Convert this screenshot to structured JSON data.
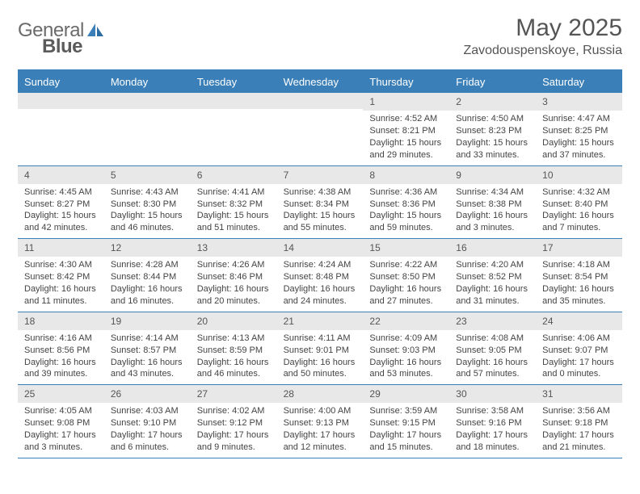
{
  "logo": {
    "text1": "General",
    "text2": "Blue"
  },
  "title": "May 2025",
  "location": "Zavodouspenskoye, Russia",
  "colors": {
    "header_bg": "#3a7fb8",
    "header_text": "#ffffff",
    "daynum_bg": "#e8e8e8",
    "text": "#444444",
    "border": "#3a7fb8"
  },
  "day_names": [
    "Sunday",
    "Monday",
    "Tuesday",
    "Wednesday",
    "Thursday",
    "Friday",
    "Saturday"
  ],
  "weeks": [
    [
      {
        "n": "",
        "sr": "",
        "ss": "",
        "dl": ""
      },
      {
        "n": "",
        "sr": "",
        "ss": "",
        "dl": ""
      },
      {
        "n": "",
        "sr": "",
        "ss": "",
        "dl": ""
      },
      {
        "n": "",
        "sr": "",
        "ss": "",
        "dl": ""
      },
      {
        "n": "1",
        "sr": "Sunrise: 4:52 AM",
        "ss": "Sunset: 8:21 PM",
        "dl": "Daylight: 15 hours and 29 minutes."
      },
      {
        "n": "2",
        "sr": "Sunrise: 4:50 AM",
        "ss": "Sunset: 8:23 PM",
        "dl": "Daylight: 15 hours and 33 minutes."
      },
      {
        "n": "3",
        "sr": "Sunrise: 4:47 AM",
        "ss": "Sunset: 8:25 PM",
        "dl": "Daylight: 15 hours and 37 minutes."
      }
    ],
    [
      {
        "n": "4",
        "sr": "Sunrise: 4:45 AM",
        "ss": "Sunset: 8:27 PM",
        "dl": "Daylight: 15 hours and 42 minutes."
      },
      {
        "n": "5",
        "sr": "Sunrise: 4:43 AM",
        "ss": "Sunset: 8:30 PM",
        "dl": "Daylight: 15 hours and 46 minutes."
      },
      {
        "n": "6",
        "sr": "Sunrise: 4:41 AM",
        "ss": "Sunset: 8:32 PM",
        "dl": "Daylight: 15 hours and 51 minutes."
      },
      {
        "n": "7",
        "sr": "Sunrise: 4:38 AM",
        "ss": "Sunset: 8:34 PM",
        "dl": "Daylight: 15 hours and 55 minutes."
      },
      {
        "n": "8",
        "sr": "Sunrise: 4:36 AM",
        "ss": "Sunset: 8:36 PM",
        "dl": "Daylight: 15 hours and 59 minutes."
      },
      {
        "n": "9",
        "sr": "Sunrise: 4:34 AM",
        "ss": "Sunset: 8:38 PM",
        "dl": "Daylight: 16 hours and 3 minutes."
      },
      {
        "n": "10",
        "sr": "Sunrise: 4:32 AM",
        "ss": "Sunset: 8:40 PM",
        "dl": "Daylight: 16 hours and 7 minutes."
      }
    ],
    [
      {
        "n": "11",
        "sr": "Sunrise: 4:30 AM",
        "ss": "Sunset: 8:42 PM",
        "dl": "Daylight: 16 hours and 11 minutes."
      },
      {
        "n": "12",
        "sr": "Sunrise: 4:28 AM",
        "ss": "Sunset: 8:44 PM",
        "dl": "Daylight: 16 hours and 16 minutes."
      },
      {
        "n": "13",
        "sr": "Sunrise: 4:26 AM",
        "ss": "Sunset: 8:46 PM",
        "dl": "Daylight: 16 hours and 20 minutes."
      },
      {
        "n": "14",
        "sr": "Sunrise: 4:24 AM",
        "ss": "Sunset: 8:48 PM",
        "dl": "Daylight: 16 hours and 24 minutes."
      },
      {
        "n": "15",
        "sr": "Sunrise: 4:22 AM",
        "ss": "Sunset: 8:50 PM",
        "dl": "Daylight: 16 hours and 27 minutes."
      },
      {
        "n": "16",
        "sr": "Sunrise: 4:20 AM",
        "ss": "Sunset: 8:52 PM",
        "dl": "Daylight: 16 hours and 31 minutes."
      },
      {
        "n": "17",
        "sr": "Sunrise: 4:18 AM",
        "ss": "Sunset: 8:54 PM",
        "dl": "Daylight: 16 hours and 35 minutes."
      }
    ],
    [
      {
        "n": "18",
        "sr": "Sunrise: 4:16 AM",
        "ss": "Sunset: 8:56 PM",
        "dl": "Daylight: 16 hours and 39 minutes."
      },
      {
        "n": "19",
        "sr": "Sunrise: 4:14 AM",
        "ss": "Sunset: 8:57 PM",
        "dl": "Daylight: 16 hours and 43 minutes."
      },
      {
        "n": "20",
        "sr": "Sunrise: 4:13 AM",
        "ss": "Sunset: 8:59 PM",
        "dl": "Daylight: 16 hours and 46 minutes."
      },
      {
        "n": "21",
        "sr": "Sunrise: 4:11 AM",
        "ss": "Sunset: 9:01 PM",
        "dl": "Daylight: 16 hours and 50 minutes."
      },
      {
        "n": "22",
        "sr": "Sunrise: 4:09 AM",
        "ss": "Sunset: 9:03 PM",
        "dl": "Daylight: 16 hours and 53 minutes."
      },
      {
        "n": "23",
        "sr": "Sunrise: 4:08 AM",
        "ss": "Sunset: 9:05 PM",
        "dl": "Daylight: 16 hours and 57 minutes."
      },
      {
        "n": "24",
        "sr": "Sunrise: 4:06 AM",
        "ss": "Sunset: 9:07 PM",
        "dl": "Daylight: 17 hours and 0 minutes."
      }
    ],
    [
      {
        "n": "25",
        "sr": "Sunrise: 4:05 AM",
        "ss": "Sunset: 9:08 PM",
        "dl": "Daylight: 17 hours and 3 minutes."
      },
      {
        "n": "26",
        "sr": "Sunrise: 4:03 AM",
        "ss": "Sunset: 9:10 PM",
        "dl": "Daylight: 17 hours and 6 minutes."
      },
      {
        "n": "27",
        "sr": "Sunrise: 4:02 AM",
        "ss": "Sunset: 9:12 PM",
        "dl": "Daylight: 17 hours and 9 minutes."
      },
      {
        "n": "28",
        "sr": "Sunrise: 4:00 AM",
        "ss": "Sunset: 9:13 PM",
        "dl": "Daylight: 17 hours and 12 minutes."
      },
      {
        "n": "29",
        "sr": "Sunrise: 3:59 AM",
        "ss": "Sunset: 9:15 PM",
        "dl": "Daylight: 17 hours and 15 minutes."
      },
      {
        "n": "30",
        "sr": "Sunrise: 3:58 AM",
        "ss": "Sunset: 9:16 PM",
        "dl": "Daylight: 17 hours and 18 minutes."
      },
      {
        "n": "31",
        "sr": "Sunrise: 3:56 AM",
        "ss": "Sunset: 9:18 PM",
        "dl": "Daylight: 17 hours and 21 minutes."
      }
    ]
  ]
}
